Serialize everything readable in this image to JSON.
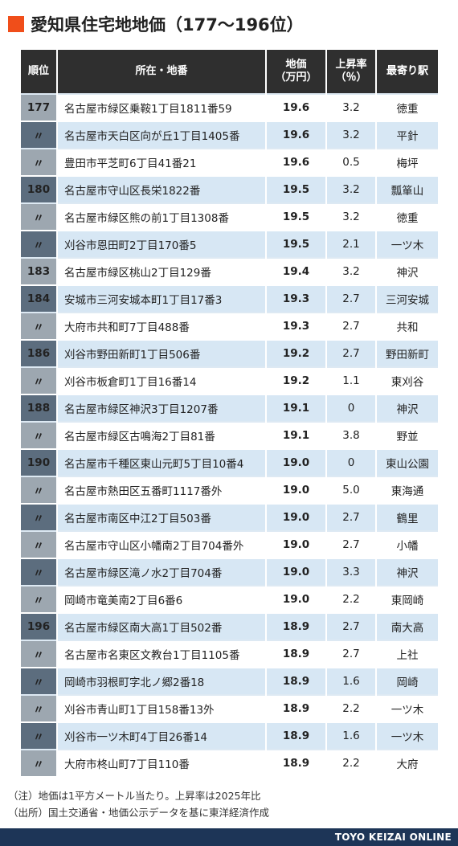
{
  "title": "愛知県住宅地地価（177〜196位）",
  "colors": {
    "accent": "#f04e1a",
    "header_bg": "#2f2f2f",
    "row_blue": "#d7e7f4",
    "rank_dark": "#5c6d7e",
    "rank_light": "#9da7b0",
    "price_red": "#d6421f",
    "footer_bg": "#1d3557"
  },
  "table": {
    "headers": {
      "rank": "順位",
      "address": "所在・地番",
      "price_line1": "地価",
      "price_line2": "（万円）",
      "rate_line1": "上昇率",
      "rate_line2": "（％）",
      "station": "最寄り駅"
    },
    "rows": [
      {
        "rank": "177",
        "address": "名古屋市緑区乗鞍1丁目1811番59",
        "price": "19.6",
        "rate": "3.2",
        "station": "徳重"
      },
      {
        "rank": "〃",
        "address": "名古屋市天白区向が丘1丁目1405番",
        "price": "19.6",
        "rate": "3.2",
        "station": "平針"
      },
      {
        "rank": "〃",
        "address": "豊田市平芝町6丁目41番21",
        "price": "19.6",
        "rate": "0.5",
        "station": "梅坪"
      },
      {
        "rank": "180",
        "address": "名古屋市守山区長栄1822番",
        "price": "19.5",
        "rate": "3.2",
        "station": "瓢箪山"
      },
      {
        "rank": "〃",
        "address": "名古屋市緑区熊の前1丁目1308番",
        "price": "19.5",
        "rate": "3.2",
        "station": "徳重"
      },
      {
        "rank": "〃",
        "address": "刈谷市恩田町2丁目170番5",
        "price": "19.5",
        "rate": "2.1",
        "station": "一ツ木"
      },
      {
        "rank": "183",
        "address": "名古屋市緑区桃山2丁目129番",
        "price": "19.4",
        "rate": "3.2",
        "station": "神沢"
      },
      {
        "rank": "184",
        "address": "安城市三河安城本町1丁目17番3",
        "price": "19.3",
        "rate": "2.7",
        "station": "三河安城"
      },
      {
        "rank": "〃",
        "address": "大府市共和町7丁目488番",
        "price": "19.3",
        "rate": "2.7",
        "station": "共和"
      },
      {
        "rank": "186",
        "address": "刈谷市野田新町1丁目506番",
        "price": "19.2",
        "rate": "2.7",
        "station": "野田新町"
      },
      {
        "rank": "〃",
        "address": "刈谷市板倉町1丁目16番14",
        "price": "19.2",
        "rate": "1.1",
        "station": "東刈谷"
      },
      {
        "rank": "188",
        "address": "名古屋市緑区神沢3丁目1207番",
        "price": "19.1",
        "rate": "0",
        "station": "神沢"
      },
      {
        "rank": "〃",
        "address": "名古屋市緑区古鳴海2丁目81番",
        "price": "19.1",
        "rate": "3.8",
        "station": "野並"
      },
      {
        "rank": "190",
        "address": "名古屋市千種区東山元町5丁目10番4",
        "price": "19.0",
        "rate": "0",
        "station": "東山公園"
      },
      {
        "rank": "〃",
        "address": "名古屋市熱田区五番町1117番外",
        "price": "19.0",
        "rate": "5.0",
        "station": "東海通"
      },
      {
        "rank": "〃",
        "address": "名古屋市南区中江2丁目503番",
        "price": "19.0",
        "rate": "2.7",
        "station": "鶴里"
      },
      {
        "rank": "〃",
        "address": "名古屋市守山区小幡南2丁目704番外",
        "price": "19.0",
        "rate": "2.7",
        "station": "小幡"
      },
      {
        "rank": "〃",
        "address": "名古屋市緑区滝ノ水2丁目704番",
        "price": "19.0",
        "rate": "3.3",
        "station": "神沢"
      },
      {
        "rank": "〃",
        "address": "岡崎市竜美南2丁目6番6",
        "price": "19.0",
        "rate": "2.2",
        "station": "東岡崎"
      },
      {
        "rank": "196",
        "address": "名古屋市緑区南大高1丁目502番",
        "price": "18.9",
        "rate": "2.7",
        "station": "南大高"
      },
      {
        "rank": "〃",
        "address": "名古屋市名東区文教台1丁目1105番",
        "price": "18.9",
        "rate": "2.7",
        "station": "上社"
      },
      {
        "rank": "〃",
        "address": "岡崎市羽根町字北ノ郷2番18",
        "price": "18.9",
        "rate": "1.6",
        "station": "岡崎"
      },
      {
        "rank": "〃",
        "address": "刈谷市青山町1丁目158番13外",
        "price": "18.9",
        "rate": "2.2",
        "station": "一ツ木"
      },
      {
        "rank": "〃",
        "address": "刈谷市一ツ木町4丁目26番14",
        "price": "18.9",
        "rate": "1.6",
        "station": "一ツ木"
      },
      {
        "rank": "〃",
        "address": "大府市柊山町7丁目110番",
        "price": "18.9",
        "rate": "2.2",
        "station": "大府"
      }
    ]
  },
  "notes": {
    "note1": "（注）地価は1平方メートル当たり。上昇率は2025年比",
    "note2": "（出所）国土交通省・地価公示データを基に東洋経済作成"
  },
  "footer": {
    "brand": "TOYO KEIZAI ONLINE"
  }
}
